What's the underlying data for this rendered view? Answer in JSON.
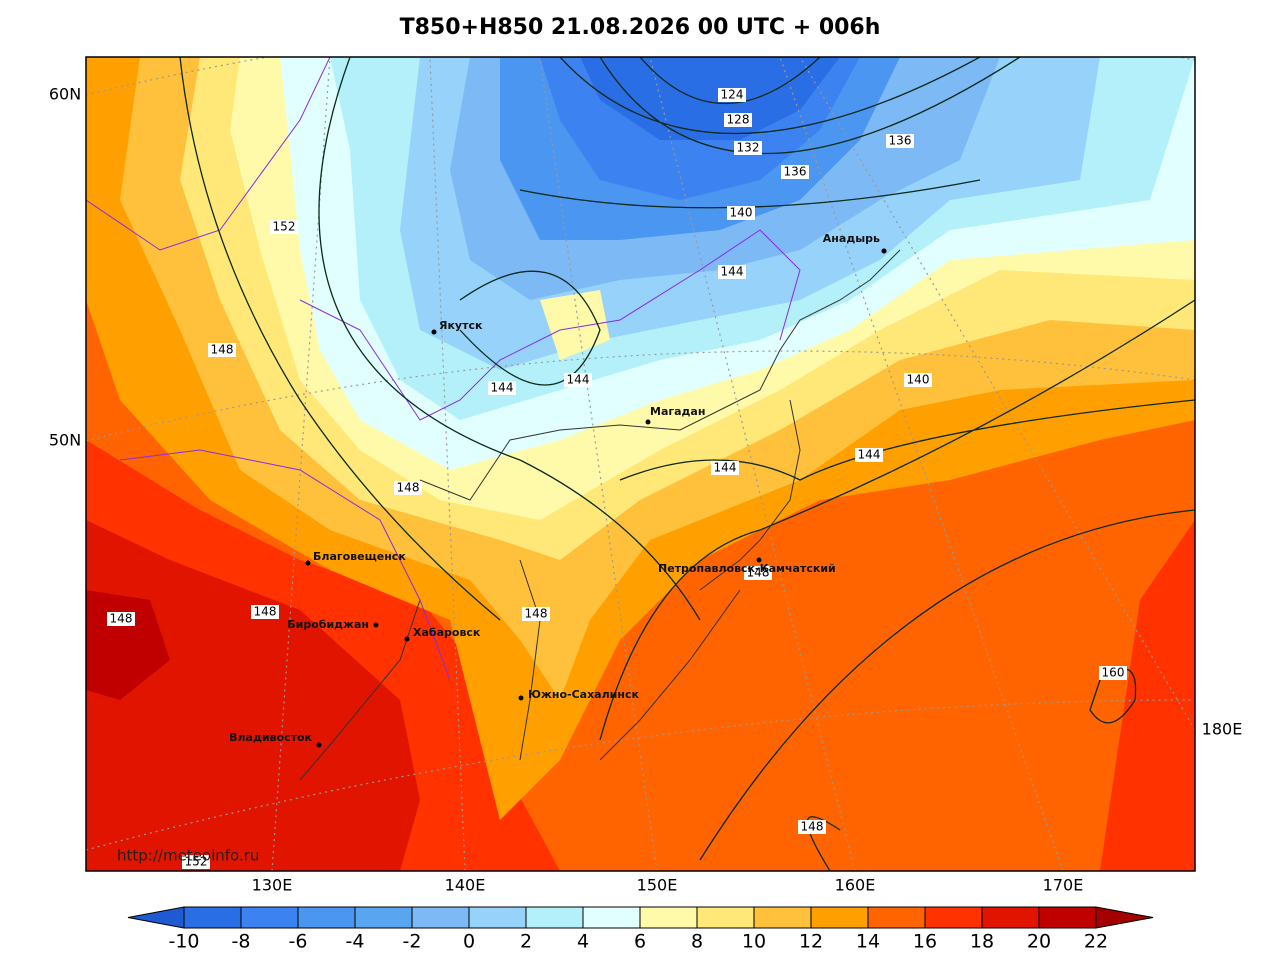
{
  "header": {
    "title": "T850+H850 21.08.2026 00 UTC + 006h"
  },
  "map": {
    "lat_labels": [
      "60N",
      "50N"
    ],
    "lon_labels": [
      "130E",
      "140E",
      "150E",
      "160E",
      "170E",
      "180E"
    ],
    "cities": [
      "Якутск",
      "Магадан",
      "Анадырь",
      "Благовещенск",
      "Биробиджан",
      "Хабаровск",
      "Петропавловск-Камчатский",
      "Южно-Сахалинск",
      "Владивосток"
    ],
    "contour_labels": [
      124,
      128,
      132,
      136,
      136,
      140,
      144,
      140,
      144,
      152,
      148,
      144,
      144,
      144,
      148,
      148,
      148,
      148,
      148,
      160,
      148,
      152
    ],
    "credit": "http://meteoinfo.ru"
  },
  "colorbar": {
    "ticks": [
      -10,
      -8,
      -6,
      -4,
      -2,
      0,
      2,
      4,
      6,
      8,
      10,
      12,
      14,
      16,
      18,
      20,
      22
    ],
    "colors": [
      "#1e5ad2",
      "#2a6ee6",
      "#3c82f0",
      "#4b96f0",
      "#5aa5f0",
      "#7db9f5",
      "#96d2fa",
      "#b4f0fa",
      "#e1ffff",
      "#fffaaa",
      "#ffe878",
      "#ffc03c",
      "#ffa000",
      "#ff6400",
      "#ff3200",
      "#e11400",
      "#c00000",
      "#a50000"
    ]
  }
}
